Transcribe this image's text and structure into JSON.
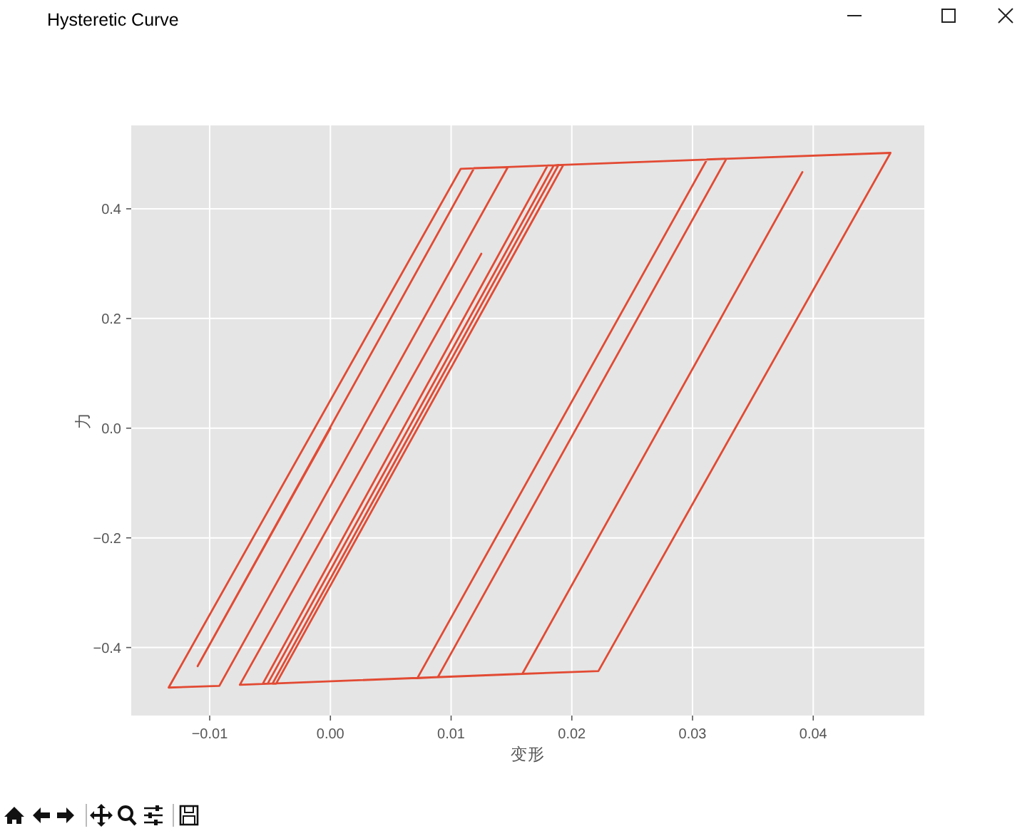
{
  "chart_data": {
    "type": "line",
    "title": "Hysteretic Curve",
    "xlabel": "变形",
    "ylabel": "力",
    "series": [
      {
        "color": "#e24a33",
        "x": [
          0,
          -0.011,
          0.0119,
          0.0147,
          -0.0092,
          -0.0134,
          0.0108,
          0.0193,
          -0.0045,
          -0.0048,
          0.0189,
          0.0185,
          -0.0052,
          -0.0056,
          0.018,
          0.0328,
          0.0089,
          0.0072,
          0.0312,
          0.0464,
          0.0222,
          0.0159,
          0.0391,
          0.0159,
          -0.0075,
          0.0125
        ],
        "values": [
          0,
          -0.434,
          0.474,
          0.476,
          -0.47,
          -0.473,
          0.473,
          0.48,
          -0.466,
          -0.466,
          0.48,
          0.479,
          -0.466,
          -0.466,
          0.479,
          0.491,
          -0.454,
          -0.456,
          0.49,
          0.502,
          -0.443,
          -0.448,
          0.467,
          -0.448,
          -0.468,
          0.318
        ]
      }
    ],
    "xlim": [
      -0.0165,
      0.0492
    ],
    "ylim": [
      -0.524,
      0.552
    ],
    "xticks": [
      {
        "value": -0.01,
        "label": "−0.01"
      },
      {
        "value": 0,
        "label": "0.00"
      },
      0.01,
      0.02,
      0.03,
      0.04
    ],
    "yticks": [
      {
        "value": -0.4,
        "label": "−0.4"
      },
      {
        "value": -0.2,
        "label": "−0.2"
      },
      {
        "value": 0,
        "label": "0.0"
      },
      0.2,
      0.4
    ],
    "grid": true
  }
}
